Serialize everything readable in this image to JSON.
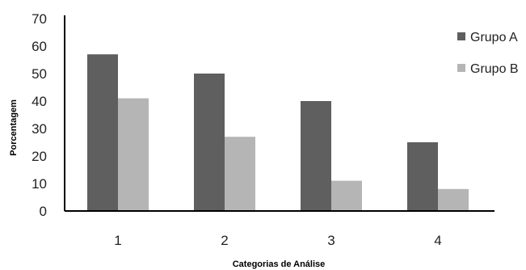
{
  "chart_data": {
    "type": "bar",
    "categories": [
      "1",
      "2",
      "3",
      "4"
    ],
    "series": [
      {
        "name": "Grupo A",
        "values": [
          57,
          50,
          40,
          25
        ],
        "color": "#5f5f5f"
      },
      {
        "name": "Grupo B",
        "values": [
          41,
          27,
          11,
          8
        ],
        "color": "#b5b5b5"
      }
    ],
    "xlabel": "Categorias de Análise",
    "ylabel": "Porcentagem",
    "ylim": [
      0,
      70
    ],
    "yticks": [
      "0",
      "10",
      "20",
      "30",
      "40",
      "50",
      "60",
      "70"
    ],
    "grid": false,
    "legend_position": "right"
  }
}
